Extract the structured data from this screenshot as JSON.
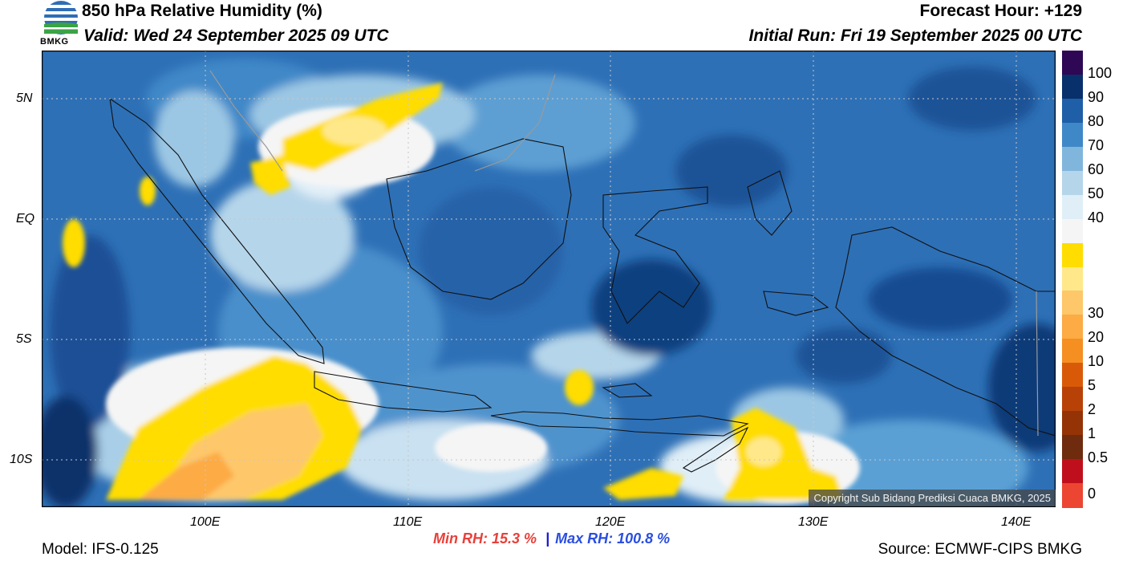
{
  "header": {
    "title": "850 hPa Relative Humidity (%)",
    "valid": "Valid: Wed 24 September 2025 09 UTC",
    "forecast_hour": "Forecast Hour: +129",
    "initial_run": "Initial Run: Fri 19 September 2025 00 UTC",
    "logo_text": "BMKG"
  },
  "map": {
    "lat_labels": [
      "5N",
      "EQ",
      "5S",
      "10S"
    ],
    "lon_labels": [
      "100E",
      "110E",
      "120E",
      "130E",
      "140E"
    ],
    "region": "Indonesia",
    "lon_range": [
      92,
      142
    ],
    "lat_range": [
      -12,
      7
    ]
  },
  "colorbar": {
    "labels": [
      "100",
      "90",
      "80",
      "70",
      "60",
      "50",
      "40",
      "30",
      "20",
      "10",
      "5",
      "2",
      "1",
      "0.5",
      "0"
    ],
    "colors": [
      "#2e0854",
      "#08306b",
      "#1f5fa8",
      "#3f88c8",
      "#80b6dc",
      "#b5d5ea",
      "#dfeef7",
      "#f5f5f5",
      "#ffdd00",
      "#ffe88a",
      "#fdc76a",
      "#fdab44",
      "#f58f22",
      "#d85a08",
      "#b84108",
      "#943306",
      "#6e2b0e",
      "#c00f1c",
      "#ec4532"
    ]
  },
  "stats": {
    "min_label": "Min RH:  15.3 %",
    "separator": "|",
    "max_label": "Max RH: 100.8 %"
  },
  "footer": {
    "model": "Model: IFS-0.125",
    "source": "Source: ECMWF-CIPS BMKG",
    "copyright": "Copyright Sub Bidang Prediksi Cuaca BMKG, 2025"
  }
}
